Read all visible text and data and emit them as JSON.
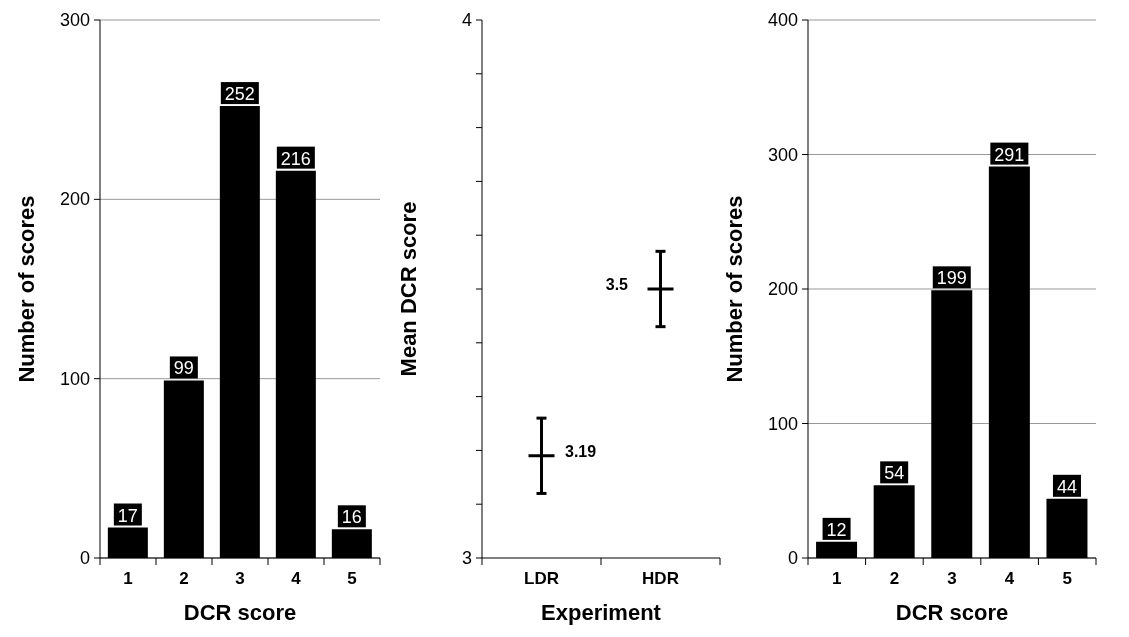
{
  "chart_data": [
    {
      "type": "bar",
      "xlabel": "DCR score",
      "ylabel": "Number of scores",
      "categories": [
        "1",
        "2",
        "3",
        "4",
        "5"
      ],
      "values": [
        17,
        99,
        252,
        216,
        16
      ],
      "color": "#000000",
      "ylim": [
        0,
        300
      ],
      "yticks": [
        0,
        100,
        200,
        300
      ],
      "grid": "y",
      "data_labels": true
    },
    {
      "type": "scatter",
      "xlabel": "Experiment",
      "ylabel": "Mean DCR score",
      "categories": [
        "LDR",
        "HDR"
      ],
      "values": [
        3.19,
        3.5
      ],
      "errors": [
        0.07,
        0.07
      ],
      "color": "#000000",
      "marker": "cross",
      "ylim": [
        3,
        4
      ],
      "yticks": [
        3,
        {
          "value": 3.1,
          "label": null
        },
        {
          "value": 3.2,
          "label": null
        },
        {
          "value": 3.3,
          "label": null
        },
        {
          "value": 3.4,
          "label": null
        },
        {
          "value": 3.5,
          "label": null
        },
        {
          "value": 3.6,
          "label": null
        },
        {
          "value": 3.7,
          "label": null
        },
        {
          "value": 3.8,
          "label": null
        },
        {
          "value": 3.9,
          "label": null
        },
        4
      ],
      "data_labels": true
    },
    {
      "type": "bar",
      "xlabel": "DCR score",
      "ylabel": "Number of scores",
      "categories": [
        "1",
        "2",
        "3",
        "4",
        "5"
      ],
      "values": [
        12,
        54,
        199,
        291,
        44
      ],
      "color": "#000000",
      "ylim": [
        0,
        400
      ],
      "yticks": [
        0,
        100,
        200,
        300,
        400
      ],
      "grid": "y",
      "data_labels": true
    }
  ]
}
